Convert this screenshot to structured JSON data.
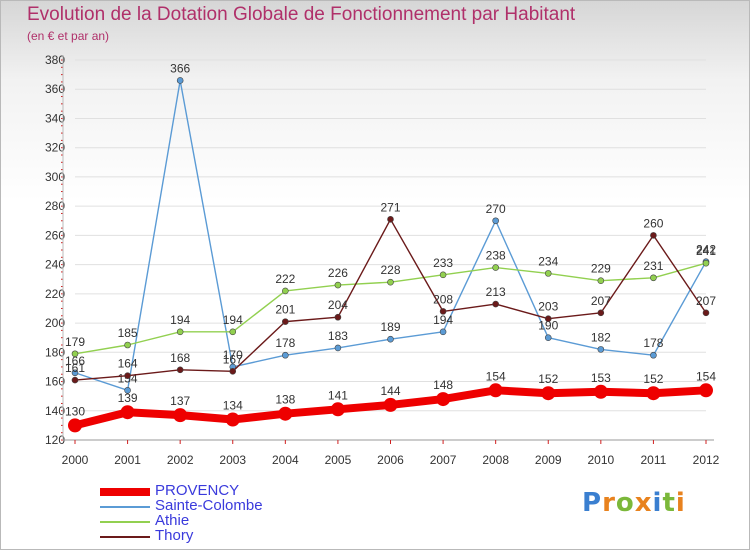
{
  "header": {
    "title": "Evolution de la Dotation Globale de Fonctionnement par Habitant",
    "subtitle": "(en € et par an)"
  },
  "logo": {
    "letters": [
      "P",
      "r",
      "o",
      "x",
      "i",
      "t",
      "i"
    ],
    "colors": [
      "#3a7fd0",
      "#e8821e",
      "#7bb83a",
      "#e8821e",
      "#3a7fd0",
      "#7bb83a",
      "#e8821e"
    ]
  },
  "colors": {
    "title": "#b0306a",
    "legend_text": "#3a3adc",
    "axis_text": "#333333",
    "grid": "#e0e0e0",
    "tick": "#d02020"
  },
  "chart_data": {
    "type": "line",
    "title": "Evolution de la Dotation Globale de Fonctionnement par Habitant",
    "subtitle": "(en € et par an)",
    "x": [
      "2000",
      "2001",
      "2002",
      "2003",
      "2004",
      "2005",
      "2006",
      "2007",
      "2008",
      "2009",
      "2010",
      "2011",
      "2012"
    ],
    "ylim": [
      120,
      380
    ],
    "yticks": [
      120,
      140,
      160,
      180,
      200,
      220,
      240,
      260,
      280,
      300,
      320,
      340,
      360,
      380
    ],
    "grid": "horizontal",
    "legend": "bottom-left",
    "series": [
      {
        "name": "PROVENCY",
        "color": "#ee0000",
        "thick": true,
        "values": [
          130,
          139,
          137,
          134,
          138,
          141,
          144,
          148,
          154,
          152,
          153,
          152,
          154
        ]
      },
      {
        "name": "Sainte-Colombe",
        "color": "#5b9bd5",
        "thick": false,
        "values": [
          166,
          154,
          366,
          170,
          178,
          183,
          189,
          194,
          270,
          190,
          182,
          178,
          242
        ]
      },
      {
        "name": "Athie",
        "color": "#92d050",
        "thick": false,
        "values": [
          179,
          185,
          194,
          194,
          222,
          226,
          228,
          233,
          238,
          234,
          229,
          231,
          241
        ]
      },
      {
        "name": "Thory",
        "color": "#6b1a1a",
        "thick": false,
        "values": [
          161,
          164,
          168,
          167,
          201,
          204,
          271,
          208,
          213,
          203,
          207,
          260,
          207
        ]
      }
    ]
  }
}
